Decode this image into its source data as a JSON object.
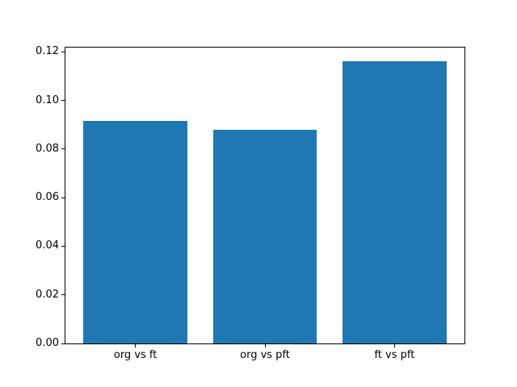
{
  "chart_data": {
    "type": "bar",
    "categories": [
      "org vs ft",
      "org vs pft",
      "ft vs pft"
    ],
    "values": [
      0.0915,
      0.0878,
      0.116
    ],
    "title": "",
    "xlabel": "",
    "ylabel": "",
    "ylim": [
      0,
      0.1218
    ],
    "yticks": [
      0.0,
      0.02,
      0.04,
      0.06,
      0.08,
      0.1,
      0.12
    ],
    "ytick_label_format": "0.00",
    "bar_color": "#1f77b4",
    "spine_color": "#000000",
    "background_color": "#ffffff",
    "bar_width_fraction": 0.8,
    "grid": false,
    "legend": "none"
  }
}
